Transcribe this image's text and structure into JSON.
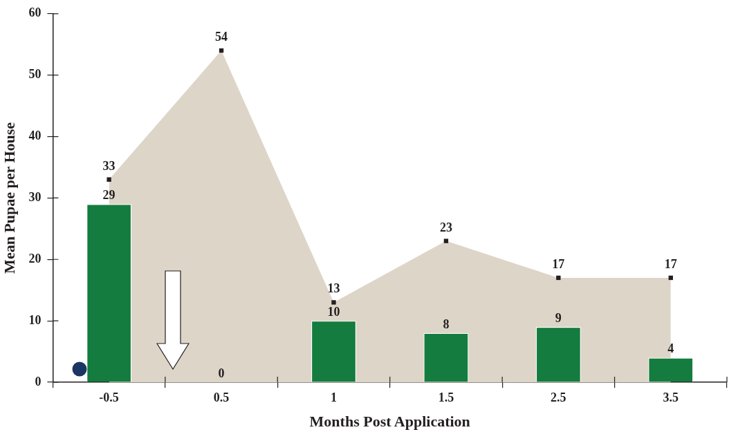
{
  "chart_data": {
    "type": "bar",
    "xlabel": "Months Post Application",
    "ylabel": "Mean Pupae per House",
    "categories": [
      "-0.5",
      "0.5",
      "1",
      "1.5",
      "2.5",
      "3.5"
    ],
    "series": [
      {
        "type": "area",
        "color": "#ddd5c8",
        "marker": "square",
        "values": [
          33,
          54,
          13,
          23,
          17,
          17
        ]
      },
      {
        "type": "bar",
        "color": "#137c3e",
        "values": [
          29,
          0,
          10,
          8,
          9,
          4
        ]
      }
    ],
    "ylim": [
      0,
      60
    ],
    "yticks": [
      0,
      10,
      20,
      30,
      40,
      50,
      60
    ],
    "grid": false,
    "data_labels": true
  }
}
